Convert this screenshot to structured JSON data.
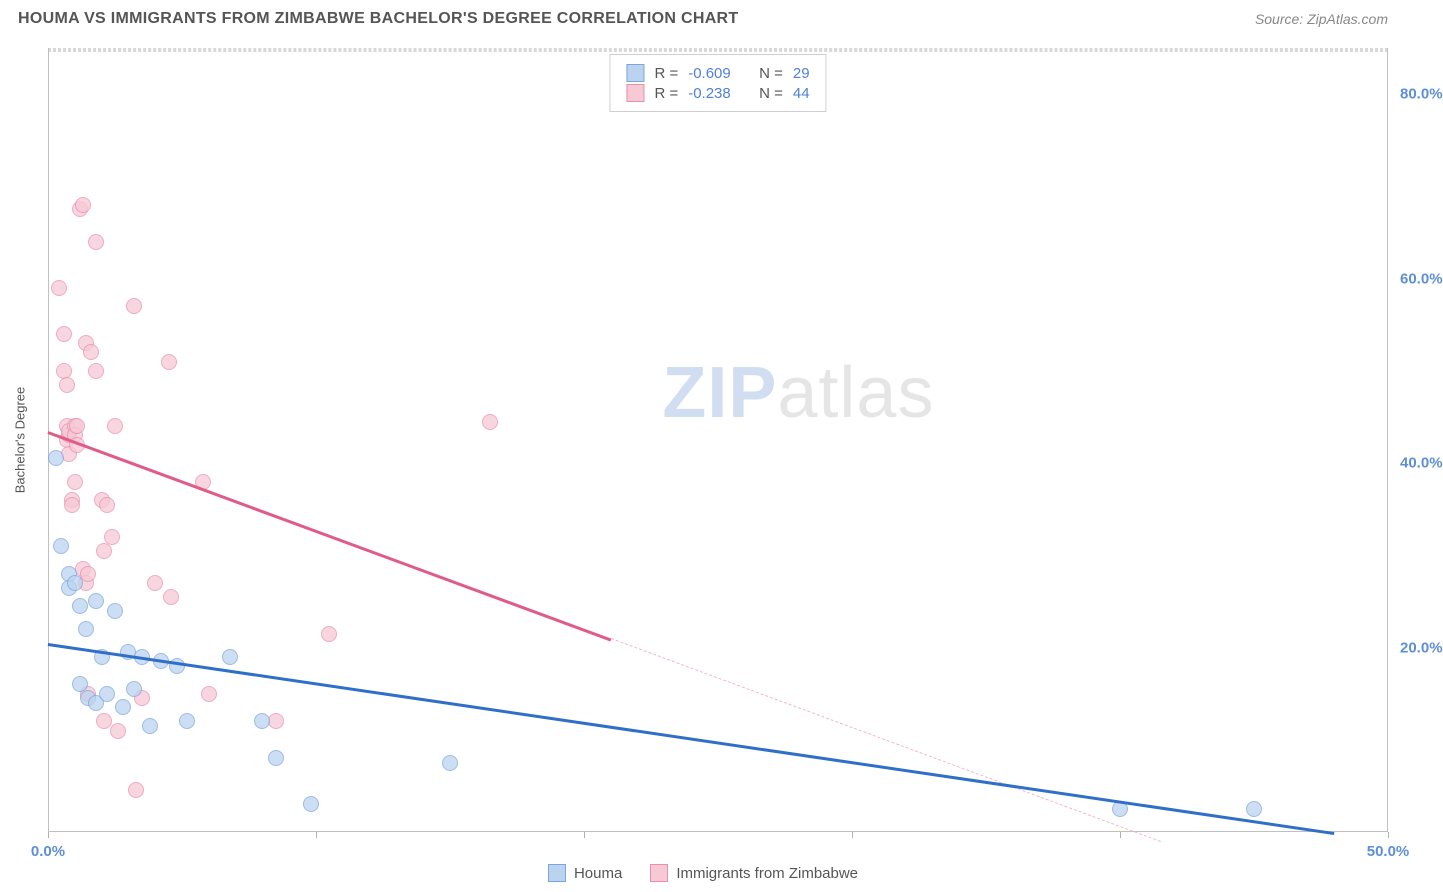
{
  "title": "HOUMA VS IMMIGRANTS FROM ZIMBABWE BACHELOR'S DEGREE CORRELATION CHART",
  "source": "Source: ZipAtlas.com",
  "watermark": {
    "part1": "ZIP",
    "part2": "atlas"
  },
  "chart": {
    "type": "scatter",
    "ylabel": "Bachelor's Degree",
    "background_color": "#ffffff",
    "grid_color": "#d8d8d8",
    "axis_color": "#c0c0c0",
    "tick_label_color": "#5d8fd8",
    "xlim": [
      0,
      50
    ],
    "ylim": [
      0,
      85
    ],
    "yticks": [
      20,
      40,
      60,
      80
    ],
    "ytick_labels": [
      "20.0%",
      "40.0%",
      "60.0%",
      "80.0%"
    ],
    "xticks_minor": [
      0,
      10,
      20,
      30,
      40,
      50
    ],
    "x_axis_labels": [
      {
        "pos": 0,
        "text": "0.0%"
      },
      {
        "pos": 50,
        "text": "50.0%"
      }
    ],
    "series": [
      {
        "name": "Houma",
        "color_fill": "#bcd3ef",
        "color_stroke": "#7ba6dd",
        "marker_size": 16,
        "marker_opacity": 0.75,
        "R": "-0.609",
        "N": "29",
        "trend": {
          "x1": 0,
          "y1": 20.5,
          "x2": 48,
          "y2": 0,
          "color": "#2f6fc9",
          "width": 2.5,
          "dash": false
        },
        "points": [
          [
            0.3,
            40.5
          ],
          [
            0.5,
            31.0
          ],
          [
            0.8,
            28.0
          ],
          [
            0.8,
            26.5
          ],
          [
            1.0,
            27.0
          ],
          [
            1.2,
            24.5
          ],
          [
            1.2,
            16.0
          ],
          [
            1.4,
            22.0
          ],
          [
            1.5,
            14.5
          ],
          [
            1.8,
            14.0
          ],
          [
            1.8,
            25.0
          ],
          [
            2.0,
            19.0
          ],
          [
            2.2,
            15.0
          ],
          [
            2.5,
            24.0
          ],
          [
            2.8,
            13.5
          ],
          [
            3.0,
            19.5
          ],
          [
            3.2,
            15.5
          ],
          [
            3.5,
            19.0
          ],
          [
            3.8,
            11.5
          ],
          [
            4.2,
            18.5
          ],
          [
            4.8,
            18.0
          ],
          [
            5.2,
            12.0
          ],
          [
            6.8,
            19.0
          ],
          [
            8.0,
            12.0
          ],
          [
            8.5,
            8.0
          ],
          [
            9.8,
            3.0
          ],
          [
            15.0,
            7.5
          ],
          [
            40.0,
            2.5
          ],
          [
            45.0,
            2.5
          ]
        ]
      },
      {
        "name": "Immigrants from Zimbabwe",
        "color_fill": "#f6c9d5",
        "color_stroke": "#e98fae",
        "marker_size": 16,
        "marker_opacity": 0.75,
        "R": "-0.238",
        "N": "44",
        "trend": {
          "x1": 0,
          "y1": 43.5,
          "x2": 21,
          "y2": 21.0,
          "color": "#e05b86",
          "width": 2.5,
          "dash": false
        },
        "trend_ext": {
          "x1": 21,
          "y1": 21.0,
          "x2": 41.5,
          "y2": -1.0,
          "color": "#f2b7c9",
          "width": 1.5,
          "dash": true
        },
        "points": [
          [
            0.4,
            59.0
          ],
          [
            0.6,
            54.0
          ],
          [
            0.6,
            50.0
          ],
          [
            0.7,
            48.5
          ],
          [
            0.7,
            44.0
          ],
          [
            0.7,
            42.5
          ],
          [
            0.8,
            43.0
          ],
          [
            0.8,
            43.5
          ],
          [
            0.8,
            41.0
          ],
          [
            0.9,
            36.0
          ],
          [
            0.9,
            35.5
          ],
          [
            1.0,
            44.0
          ],
          [
            1.0,
            43.0
          ],
          [
            1.0,
            38.0
          ],
          [
            1.1,
            44.0
          ],
          [
            1.1,
            42.0
          ],
          [
            1.2,
            67.5
          ],
          [
            1.3,
            68.0
          ],
          [
            1.3,
            28.5
          ],
          [
            1.4,
            53.0
          ],
          [
            1.4,
            27.0
          ],
          [
            1.5,
            28.0
          ],
          [
            1.5,
            15.0
          ],
          [
            1.6,
            52.0
          ],
          [
            1.8,
            64.0
          ],
          [
            1.8,
            50.0
          ],
          [
            2.0,
            36.0
          ],
          [
            2.1,
            30.5
          ],
          [
            2.1,
            12.0
          ],
          [
            2.2,
            35.5
          ],
          [
            2.4,
            32.0
          ],
          [
            2.5,
            44.0
          ],
          [
            2.6,
            11.0
          ],
          [
            3.2,
            57.0
          ],
          [
            3.3,
            4.5
          ],
          [
            3.5,
            14.5
          ],
          [
            4.0,
            27.0
          ],
          [
            4.5,
            51.0
          ],
          [
            4.6,
            25.5
          ],
          [
            5.8,
            38.0
          ],
          [
            6.0,
            15.0
          ],
          [
            8.5,
            12.0
          ],
          [
            10.5,
            21.5
          ],
          [
            16.5,
            44.5
          ]
        ]
      }
    ]
  },
  "stats_labels": {
    "R": "R =",
    "N": "N ="
  },
  "legend": {
    "items": [
      {
        "label": "Houma",
        "fill": "#bcd3ef",
        "stroke": "#7ba6dd"
      },
      {
        "label": "Immigrants from Zimbabwe",
        "fill": "#f6c9d5",
        "stroke": "#e98fae"
      }
    ]
  }
}
